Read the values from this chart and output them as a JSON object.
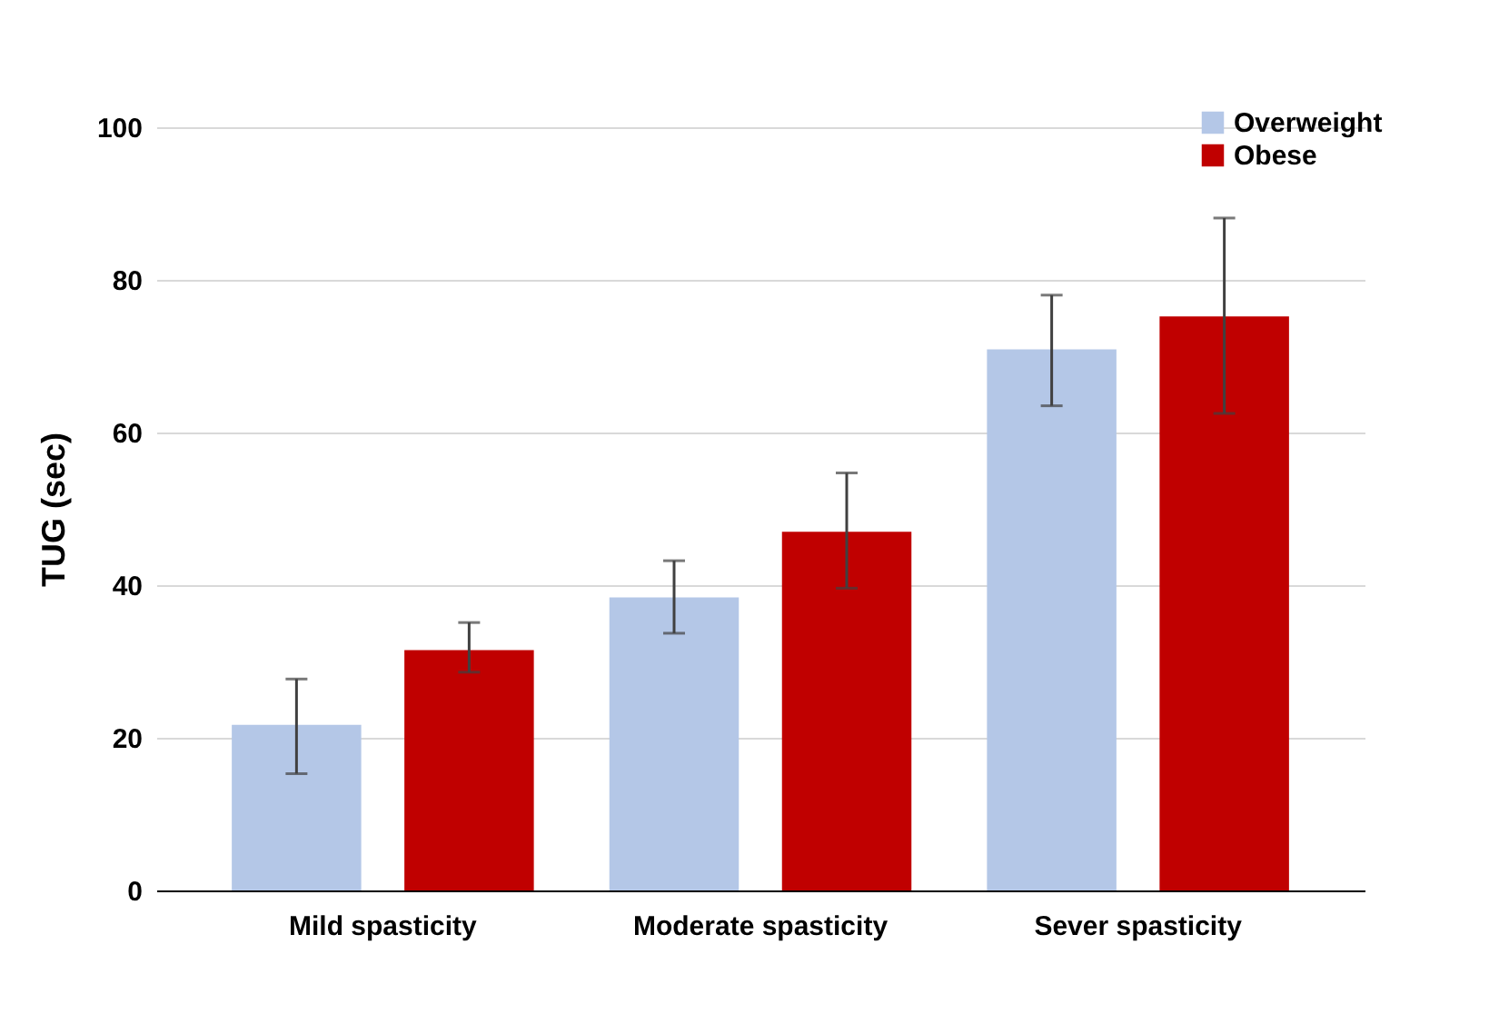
{
  "chart_data": {
    "type": "bar",
    "ylabel": "TUG (sec)",
    "categories": [
      "Mild spasticity",
      "Moderate spasticity",
      "Sever spasticity"
    ],
    "series": [
      {
        "name": "Overweight",
        "color": "#b4c7e7",
        "values": [
          21.7,
          38.4,
          70.9
        ],
        "errors": [
          [
            15.3,
            27.7
          ],
          [
            33.7,
            43.2
          ],
          [
            63.5,
            78.0
          ]
        ]
      },
      {
        "name": "Obese",
        "color": "#c00000",
        "values": [
          31.5,
          47.0,
          75.2
        ],
        "errors": [
          [
            28.6,
            35.1
          ],
          [
            39.6,
            54.7
          ],
          [
            62.5,
            88.1
          ]
        ]
      }
    ],
    "ylim": [
      0,
      100
    ],
    "yticks": [
      0,
      20,
      40,
      60,
      80,
      100
    ],
    "grid": "y",
    "legend": "top right"
  }
}
